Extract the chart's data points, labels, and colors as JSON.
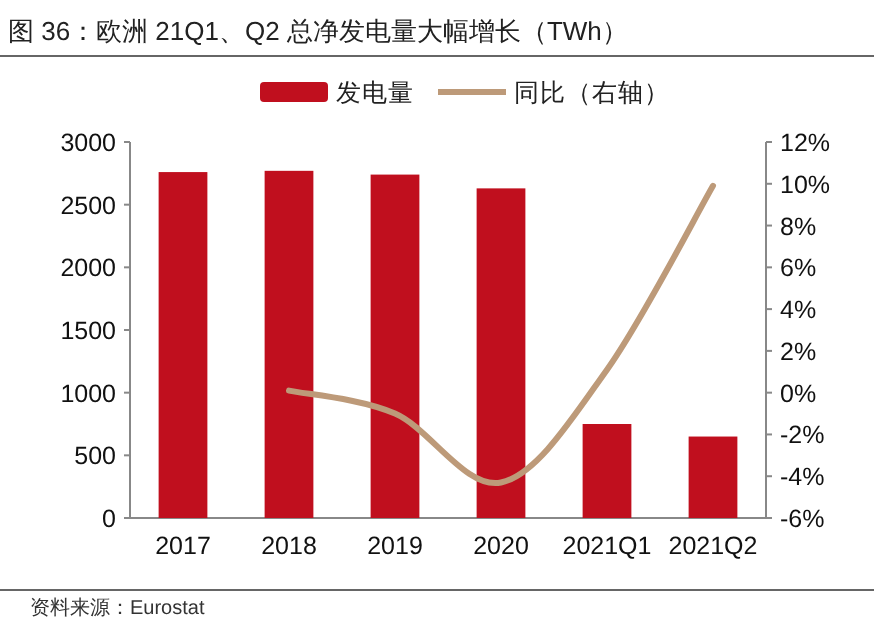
{
  "chart_data": {
    "type": "bar",
    "title": "图 36：欧洲 21Q1、Q2 总净发电量大幅增长（TWh）",
    "annotations": [
      "资料来源：Eurostat"
    ],
    "categories": [
      "2017",
      "2018",
      "2019",
      "2020",
      "2021Q1",
      "2021Q2"
    ],
    "series": [
      {
        "name": "发电量",
        "color": "#c00f1e",
        "values": [
          2760,
          2770,
          2740,
          2630,
          750,
          650
        ]
      },
      {
        "name": "同比（右轴）",
        "type": "line",
        "axis": "y2",
        "color": "#bd9a79",
        "values": [
          null,
          0.1,
          -1.0,
          -4.3,
          1.1,
          9.9
        ]
      }
    ],
    "ylim": [
      0,
      3000
    ],
    "yticks": [
      0,
      500,
      1000,
      1500,
      2000,
      2500,
      3000
    ],
    "y2lim": [
      -6,
      12
    ],
    "y2ticks": [
      {
        "value": -6,
        "label": "-6%"
      },
      {
        "value": -4,
        "label": "-4%"
      },
      {
        "value": -2,
        "label": "-2%"
      },
      {
        "value": 0,
        "label": "0%"
      },
      {
        "value": 2,
        "label": "2%"
      },
      {
        "value": 4,
        "label": "4%"
      },
      {
        "value": 6,
        "label": "6%"
      },
      {
        "value": 8,
        "label": "8%"
      },
      {
        "value": 10,
        "label": "10%"
      },
      {
        "value": 12,
        "label": "12%"
      }
    ],
    "legend": "top",
    "grid": false,
    "marker": "none"
  }
}
